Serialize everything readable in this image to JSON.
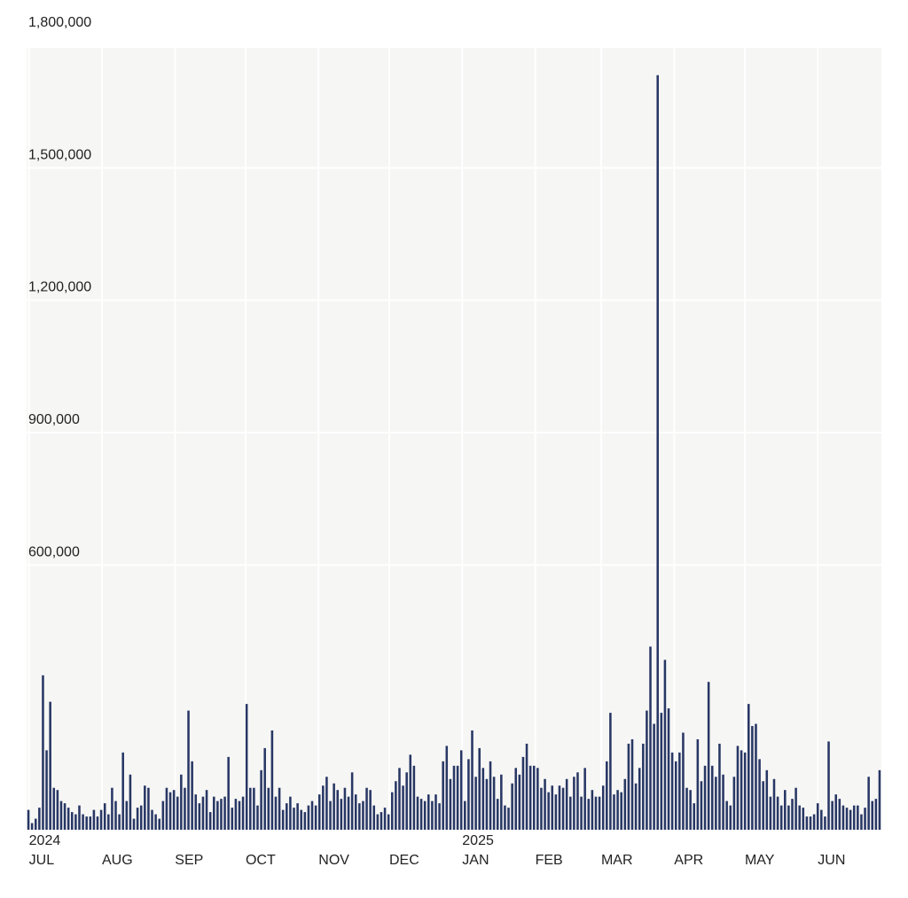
{
  "colors": {
    "bar": "#283764",
    "plot_background": "#f6f6f5",
    "gridline": "#ffffff",
    "text": "#222222"
  },
  "chart_data": {
    "type": "bar",
    "title": "",
    "xlabel": "",
    "ylabel": "",
    "ylim": [
      0,
      1800000
    ],
    "y_ticks": [
      {
        "value": 600000,
        "label": "600,000"
      },
      {
        "value": 900000,
        "label": "900,000"
      },
      {
        "value": 1200000,
        "label": "1,200,000"
      },
      {
        "value": 1500000,
        "label": "1,500,000"
      },
      {
        "value": 1800000,
        "label": "1,800,000"
      }
    ],
    "x_range": [
      "2024-06-30",
      "2025-06-28"
    ],
    "grid": true,
    "legend": "none",
    "month_ticks": [
      {
        "date": "2024-07-01",
        "label": "JUL",
        "year": "2024"
      },
      {
        "date": "2024-08-01",
        "label": "AUG",
        "year": ""
      },
      {
        "date": "2024-09-01",
        "label": "SEP",
        "year": ""
      },
      {
        "date": "2024-10-01",
        "label": "OCT",
        "year": ""
      },
      {
        "date": "2024-11-01",
        "label": "NOV",
        "year": ""
      },
      {
        "date": "2024-12-01",
        "label": "DEC",
        "year": ""
      },
      {
        "date": "2025-01-01",
        "label": "JAN",
        "year": "2025"
      },
      {
        "date": "2025-02-01",
        "label": "FEB",
        "year": ""
      },
      {
        "date": "2025-03-01",
        "label": "MAR",
        "year": ""
      },
      {
        "date": "2025-04-01",
        "label": "APR",
        "year": ""
      },
      {
        "date": "2025-05-01",
        "label": "MAY",
        "year": ""
      },
      {
        "date": "2025-06-01",
        "label": "JUN",
        "year": ""
      }
    ],
    "bar_interval_days": 1.5,
    "series": [
      {
        "start_date": "2024-06-30",
        "values": [
          45000,
          15000,
          25000,
          50000,
          350000,
          180000,
          290000,
          95000,
          90000,
          65000,
          60000,
          50000,
          40000,
          35000,
          55000,
          35000,
          30000,
          30000,
          45000,
          30000,
          45000,
          60000,
          35000,
          95000,
          65000,
          35000,
          175000,
          65000,
          125000,
          25000,
          50000,
          55000,
          100000,
          95000,
          45000,
          35000,
          25000,
          65000,
          95000,
          85000,
          90000,
          75000,
          125000,
          95000,
          270000,
          155000,
          80000,
          60000,
          75000,
          90000,
          40000,
          75000,
          65000,
          70000,
          75000,
          165000,
          50000,
          70000,
          65000,
          75000,
          285000,
          95000,
          95000,
          55000,
          135000,
          185000,
          95000,
          225000,
          75000,
          95000,
          45000,
          60000,
          75000,
          50000,
          60000,
          45000,
          40000,
          55000,
          65000,
          55000,
          80000,
          100000,
          120000,
          65000,
          105000,
          90000,
          70000,
          95000,
          75000,
          130000,
          80000,
          60000,
          65000,
          95000,
          90000,
          55000,
          35000,
          40000,
          50000,
          35000,
          85000,
          110000,
          140000,
          100000,
          130000,
          170000,
          145000,
          75000,
          70000,
          65000,
          80000,
          65000,
          80000,
          60000,
          155000,
          190000,
          115000,
          145000,
          145000,
          180000,
          65000,
          160000,
          225000,
          120000,
          185000,
          140000,
          115000,
          155000,
          120000,
          70000,
          125000,
          55000,
          50000,
          105000,
          140000,
          125000,
          165000,
          195000,
          145000,
          145000,
          140000,
          95000,
          115000,
          85000,
          100000,
          80000,
          100000,
          95000,
          115000,
          75000,
          120000,
          130000,
          75000,
          140000,
          70000,
          90000,
          75000,
          75000,
          100000,
          155000,
          265000,
          80000,
          90000,
          85000,
          115000,
          195000,
          205000,
          105000,
          140000,
          195000,
          270000,
          415000,
          240000,
          1710000,
          265000,
          385000,
          275000,
          175000,
          155000,
          175000,
          220000,
          95000,
          90000,
          60000,
          205000,
          110000,
          145000,
          335000,
          145000,
          120000,
          195000,
          125000,
          65000,
          55000,
          120000,
          190000,
          180000,
          175000,
          285000,
          235000,
          240000,
          160000,
          110000,
          135000,
          75000,
          115000,
          75000,
          55000,
          90000,
          55000,
          70000,
          95000,
          55000,
          50000,
          30000,
          30000,
          35000,
          60000,
          45000,
          30000,
          200000,
          65000,
          80000,
          70000,
          55000,
          50000,
          45000,
          55000,
          55000,
          35000,
          50000,
          120000,
          65000,
          70000,
          135000
        ]
      }
    ],
    "year_labels_note": ""
  }
}
